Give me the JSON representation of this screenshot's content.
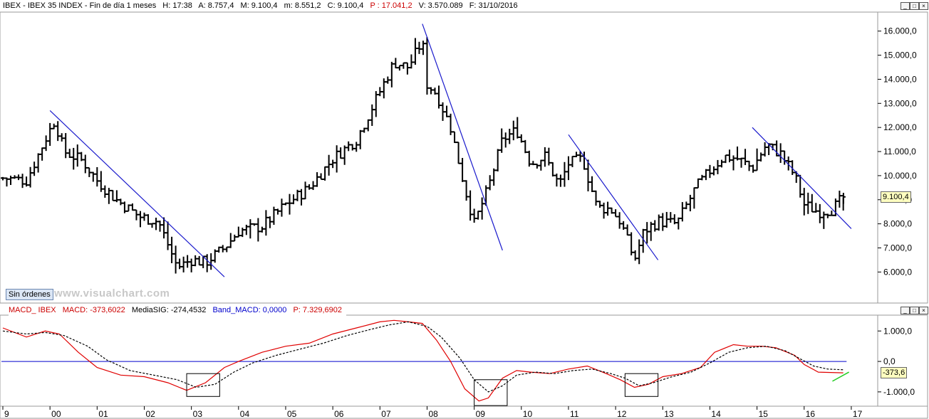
{
  "header": {
    "symbol": "IBEX - IBEX 35 INDEX - Fin de día 1 meses",
    "high": "H: 17:38",
    "open": "A: 8.757,4",
    "max": "M: 9.100,4",
    "min": "m: 8.551,2",
    "close": "C: 9.100,4",
    "percent": "P : 17.041,2",
    "volume": "V: 3.570.089",
    "date": "F: 31/10/2016"
  },
  "macd_header": {
    "name": "MACD_ IBEX",
    "macd": "MACD: -373,6022",
    "signal": "MediaSIG: -274,4532",
    "band": "Band_MACD: 0,0000",
    "p": "P: 7.329,6902"
  },
  "orders_button": "Sin órdenes",
  "watermark": "www.visualchart.com",
  "price_tag": "9.100,4",
  "macd_tag": "-373,6",
  "colors": {
    "price_bars": "#000000",
    "trendlines": "#1a1acc",
    "macd": "#e00000",
    "signal": "#000000",
    "zero_line": "#0000cc",
    "lime_line": "#22cc22"
  },
  "chart_data": [
    {
      "type": "ohlc",
      "title": "IBEX 35 INDEX monthly",
      "x_unit": "year (fractional)",
      "xlim": [
        1999.0,
        2017.5
      ],
      "ylim": [
        4800,
        16700
      ],
      "yticks": [
        6000,
        7000,
        8000,
        9000,
        10000,
        11000,
        12000,
        13000,
        14000,
        15000,
        16000
      ],
      "ytick_labels": [
        "6.000,0",
        "7.000,0",
        "8.000,0",
        "9.000,0",
        "10.000,0",
        "11.000,0",
        "12.000,0",
        "13.000,0",
        "14.000,0",
        "15.000,0",
        "16.000,0"
      ],
      "xtick_labels": [
        "9",
        "00",
        "01",
        "02",
        "03",
        "04",
        "05",
        "06",
        "07",
        "08",
        "09",
        "10",
        "11",
        "12",
        "13",
        "14",
        "15",
        "16",
        "17"
      ],
      "xtick_years": [
        1999,
        2000,
        2001,
        2002,
        2003,
        2004,
        2005,
        2006,
        2007,
        2008,
        2009,
        2010,
        2011,
        2012,
        2013,
        2014,
        2015,
        2016,
        2017
      ],
      "close_path": [
        [
          1999.0,
          9900
        ],
        [
          1999.5,
          9800
        ],
        [
          1999.9,
          11500
        ],
        [
          2000.1,
          12300
        ],
        [
          2000.3,
          11000
        ],
        [
          2000.7,
          10600
        ],
        [
          2001.0,
          9800
        ],
        [
          2001.4,
          9000
        ],
        [
          2001.9,
          8300
        ],
        [
          2002.3,
          8100
        ],
        [
          2002.7,
          6200
        ],
        [
          2003.0,
          6500
        ],
        [
          2003.3,
          6400
        ],
        [
          2003.7,
          7000
        ],
        [
          2004.0,
          7700
        ],
        [
          2004.5,
          7900
        ],
        [
          2005.0,
          8800
        ],
        [
          2005.5,
          9500
        ],
        [
          2006.0,
          10700
        ],
        [
          2006.5,
          11500
        ],
        [
          2007.0,
          13500
        ],
        [
          2007.3,
          14700
        ],
        [
          2007.6,
          14500
        ],
        [
          2007.9,
          15600
        ],
        [
          2008.0,
          13800
        ],
        [
          2008.2,
          13400
        ],
        [
          2008.5,
          12000
        ],
        [
          2008.8,
          9500
        ],
        [
          2009.0,
          8000
        ],
        [
          2009.3,
          9500
        ],
        [
          2009.6,
          11500
        ],
        [
          2009.9,
          11900
        ],
        [
          2010.2,
          10500
        ],
        [
          2010.5,
          10800
        ],
        [
          2010.8,
          9600
        ],
        [
          2011.0,
          10500
        ],
        [
          2011.3,
          10700
        ],
        [
          2011.6,
          8700
        ],
        [
          2011.9,
          8600
        ],
        [
          2012.1,
          8100
        ],
        [
          2012.4,
          6500
        ],
        [
          2012.6,
          7700
        ],
        [
          2012.9,
          8100
        ],
        [
          2013.3,
          8000
        ],
        [
          2013.7,
          9500
        ],
        [
          2014.0,
          10200
        ],
        [
          2014.3,
          10800
        ],
        [
          2014.6,
          10700
        ],
        [
          2014.9,
          10300
        ],
        [
          2015.2,
          11300
        ],
        [
          2015.5,
          10900
        ],
        [
          2015.8,
          10000
        ],
        [
          2016.0,
          8800
        ],
        [
          2016.3,
          8500
        ],
        [
          2016.6,
          8600
        ],
        [
          2016.83,
          9100
        ]
      ],
      "trendlines": [
        {
          "x": [
            2000.0,
            2003.7
          ],
          "y": [
            12700,
            5800
          ]
        },
        {
          "x": [
            2007.9,
            2009.6
          ],
          "y": [
            16300,
            6900
          ]
        },
        {
          "x": [
            2011.0,
            2012.9
          ],
          "y": [
            11700,
            6500
          ]
        },
        {
          "x": [
            2014.9,
            2017.0
          ],
          "y": [
            12000,
            7800
          ]
        }
      ],
      "last": {
        "open": 8757.4,
        "high": 9100.4,
        "low": 8551.2,
        "close": 9100.4,
        "date": "31/10/2016"
      }
    },
    {
      "type": "line",
      "title": "MACD_ IBEX",
      "ylim": [
        -1400,
        1450
      ],
      "yticks": [
        1000,
        0,
        -1000
      ],
      "ytick_labels": [
        "1.000,0",
        "0,0",
        "-1.000,0"
      ],
      "series": [
        {
          "name": "MACD",
          "points": [
            [
              1999.0,
              1100
            ],
            [
              1999.5,
              800
            ],
            [
              1999.9,
              1000
            ],
            [
              2000.2,
              900
            ],
            [
              2000.6,
              300
            ],
            [
              2001.0,
              -200
            ],
            [
              2001.5,
              -450
            ],
            [
              2002.0,
              -500
            ],
            [
              2002.5,
              -700
            ],
            [
              2002.9,
              -950
            ],
            [
              2003.3,
              -700
            ],
            [
              2003.7,
              -200
            ],
            [
              2004.0,
              0
            ],
            [
              2004.5,
              300
            ],
            [
              2005.0,
              500
            ],
            [
              2005.5,
              600
            ],
            [
              2006.0,
              900
            ],
            [
              2006.5,
              1100
            ],
            [
              2007.0,
              1300
            ],
            [
              2007.3,
              1350
            ],
            [
              2007.6,
              1300
            ],
            [
              2007.9,
              1250
            ],
            [
              2008.2,
              700
            ],
            [
              2008.5,
              0
            ],
            [
              2008.8,
              -900
            ],
            [
              2009.1,
              -1300
            ],
            [
              2009.3,
              -1200
            ],
            [
              2009.6,
              -550
            ],
            [
              2009.9,
              -300
            ],
            [
              2010.2,
              -350
            ],
            [
              2010.6,
              -400
            ],
            [
              2011.0,
              -250
            ],
            [
              2011.4,
              -150
            ],
            [
              2011.8,
              -400
            ],
            [
              2012.1,
              -600
            ],
            [
              2012.4,
              -850
            ],
            [
              2012.7,
              -750
            ],
            [
              2013.0,
              -500
            ],
            [
              2013.4,
              -400
            ],
            [
              2013.8,
              -200
            ],
            [
              2014.1,
              300
            ],
            [
              2014.5,
              550
            ],
            [
              2014.8,
              500
            ],
            [
              2015.1,
              500
            ],
            [
              2015.4,
              450
            ],
            [
              2015.8,
              200
            ],
            [
              2016.0,
              -100
            ],
            [
              2016.3,
              -350
            ],
            [
              2016.83,
              -374
            ]
          ]
        },
        {
          "name": "MediaSIG",
          "points": [
            [
              1999.0,
              1000
            ],
            [
              1999.5,
              900
            ],
            [
              1999.9,
              950
            ],
            [
              2000.3,
              850
            ],
            [
              2000.8,
              500
            ],
            [
              2001.2,
              50
            ],
            [
              2001.7,
              -300
            ],
            [
              2002.2,
              -450
            ],
            [
              2002.7,
              -600
            ],
            [
              2003.1,
              -850
            ],
            [
              2003.5,
              -750
            ],
            [
              2003.9,
              -350
            ],
            [
              2004.3,
              -50
            ],
            [
              2004.8,
              200
            ],
            [
              2005.3,
              400
            ],
            [
              2005.8,
              600
            ],
            [
              2006.3,
              850
            ],
            [
              2006.8,
              1050
            ],
            [
              2007.2,
              1200
            ],
            [
              2007.6,
              1300
            ],
            [
              2008.0,
              1150
            ],
            [
              2008.3,
              800
            ],
            [
              2008.7,
              100
            ],
            [
              2009.0,
              -600
            ],
            [
              2009.3,
              -1000
            ],
            [
              2009.6,
              -800
            ],
            [
              2009.9,
              -450
            ],
            [
              2010.3,
              -350
            ],
            [
              2010.7,
              -400
            ],
            [
              2011.1,
              -300
            ],
            [
              2011.5,
              -250
            ],
            [
              2011.9,
              -400
            ],
            [
              2012.2,
              -550
            ],
            [
              2012.5,
              -800
            ],
            [
              2012.8,
              -700
            ],
            [
              2013.2,
              -500
            ],
            [
              2013.6,
              -350
            ],
            [
              2014.0,
              -50
            ],
            [
              2014.4,
              300
            ],
            [
              2014.8,
              450
            ],
            [
              2015.2,
              500
            ],
            [
              2015.6,
              350
            ],
            [
              2015.9,
              100
            ],
            [
              2016.2,
              -150
            ],
            [
              2016.5,
              -250
            ],
            [
              2016.83,
              -274
            ]
          ]
        }
      ],
      "zero_line": 0,
      "boxes": [
        {
          "x": [
            2002.9,
            2003.6
          ],
          "y": [
            -1150,
            -400
          ]
        },
        {
          "x": [
            2009.0,
            2009.7
          ],
          "y": [
            -1450,
            -600
          ]
        },
        {
          "x": [
            2012.2,
            2012.9
          ],
          "y": [
            -1150,
            -400
          ]
        }
      ]
    }
  ]
}
